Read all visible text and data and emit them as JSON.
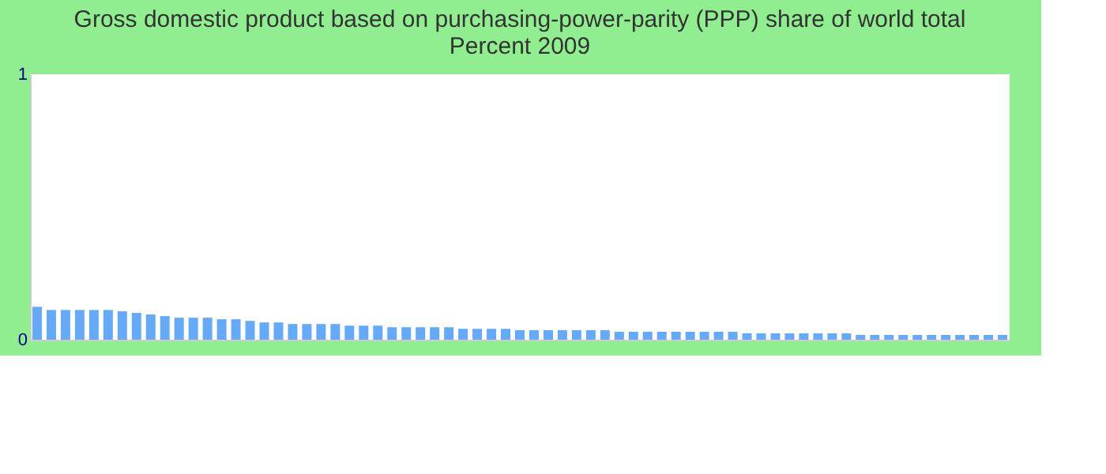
{
  "chart_data": {
    "type": "bar",
    "title": "Gross domestic product based on purchasing-power-parity (PPP) share of world total  Percent 2009",
    "categories": [
      null,
      null,
      null,
      null,
      null,
      null,
      null,
      null,
      null,
      null,
      null,
      null,
      null,
      null,
      null,
      null,
      null,
      null,
      null,
      null,
      null,
      null,
      null,
      null,
      null,
      null,
      null,
      null,
      null,
      null,
      null,
      null,
      null,
      null,
      null,
      null,
      null,
      null,
      null,
      null,
      null,
      null,
      null,
      null,
      null,
      null,
      null,
      null,
      null,
      null,
      null,
      null,
      null,
      null,
      null,
      null,
      null,
      null,
      null,
      null,
      null,
      null,
      null,
      null,
      null,
      null,
      null,
      null,
      null
    ],
    "values": [
      0.124,
      0.112,
      0.112,
      0.112,
      0.112,
      0.112,
      0.107,
      0.101,
      0.095,
      0.089,
      0.083,
      0.083,
      0.083,
      0.077,
      0.077,
      0.071,
      0.065,
      0.065,
      0.059,
      0.059,
      0.059,
      0.059,
      0.053,
      0.053,
      0.053,
      0.047,
      0.047,
      0.047,
      0.047,
      0.047,
      0.041,
      0.041,
      0.041,
      0.041,
      0.036,
      0.036,
      0.036,
      0.036,
      0.036,
      0.036,
      0.036,
      0.03,
      0.03,
      0.03,
      0.03,
      0.03,
      0.03,
      0.03,
      0.03,
      0.03,
      0.024,
      0.024,
      0.024,
      0.024,
      0.024,
      0.024,
      0.024,
      0.024,
      0.018,
      0.018,
      0.018,
      0.018,
      0.018,
      0.018,
      0.018,
      0.018,
      0.018,
      0.018,
      0.018
    ],
    "color": "#66aaf7",
    "ylim": [
      0,
      1
    ],
    "yticks": [
      0,
      1
    ],
    "grid": false,
    "tick_labels": "y"
  }
}
